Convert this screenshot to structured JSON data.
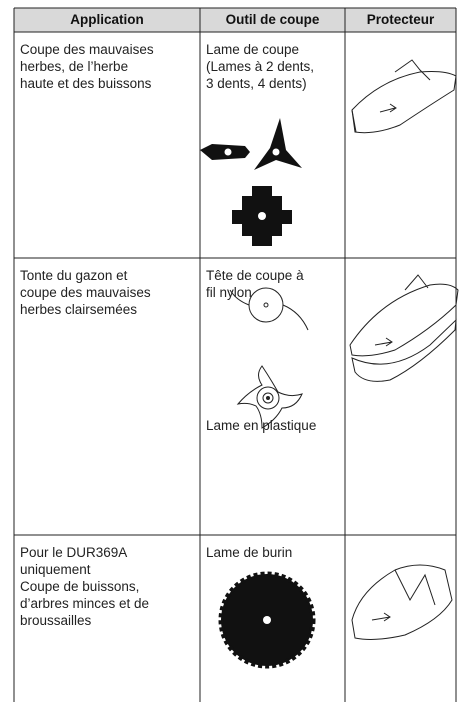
{
  "table": {
    "header": [
      "Application",
      "Outil de coupe",
      "Protecteur"
    ],
    "rows": [
      {
        "application": [
          "Coupe des mauvaises",
          "herbes, de l’herbe",
          "haute et des buissons"
        ],
        "tools": [
          [
            "Lame de coupe",
            "(Lames à 2 dents,",
            "3 dents, 4 dents)"
          ]
        ]
      },
      {
        "application": [
          "Tonte du gazon et",
          "coupe des mauvaises",
          "herbes clairsemées"
        ],
        "tools": [
          [
            "Tête de coupe à",
            "fil nylon"
          ],
          [
            "Lame en plastique"
          ]
        ]
      },
      {
        "application": [
          "Pour le DUR369A",
          "uniquement",
          "Coupe de buissons,",
          "d’arbres minces et de",
          "broussailles"
        ],
        "tools": [
          [
            "Lame de burin"
          ]
        ]
      }
    ]
  }
}
